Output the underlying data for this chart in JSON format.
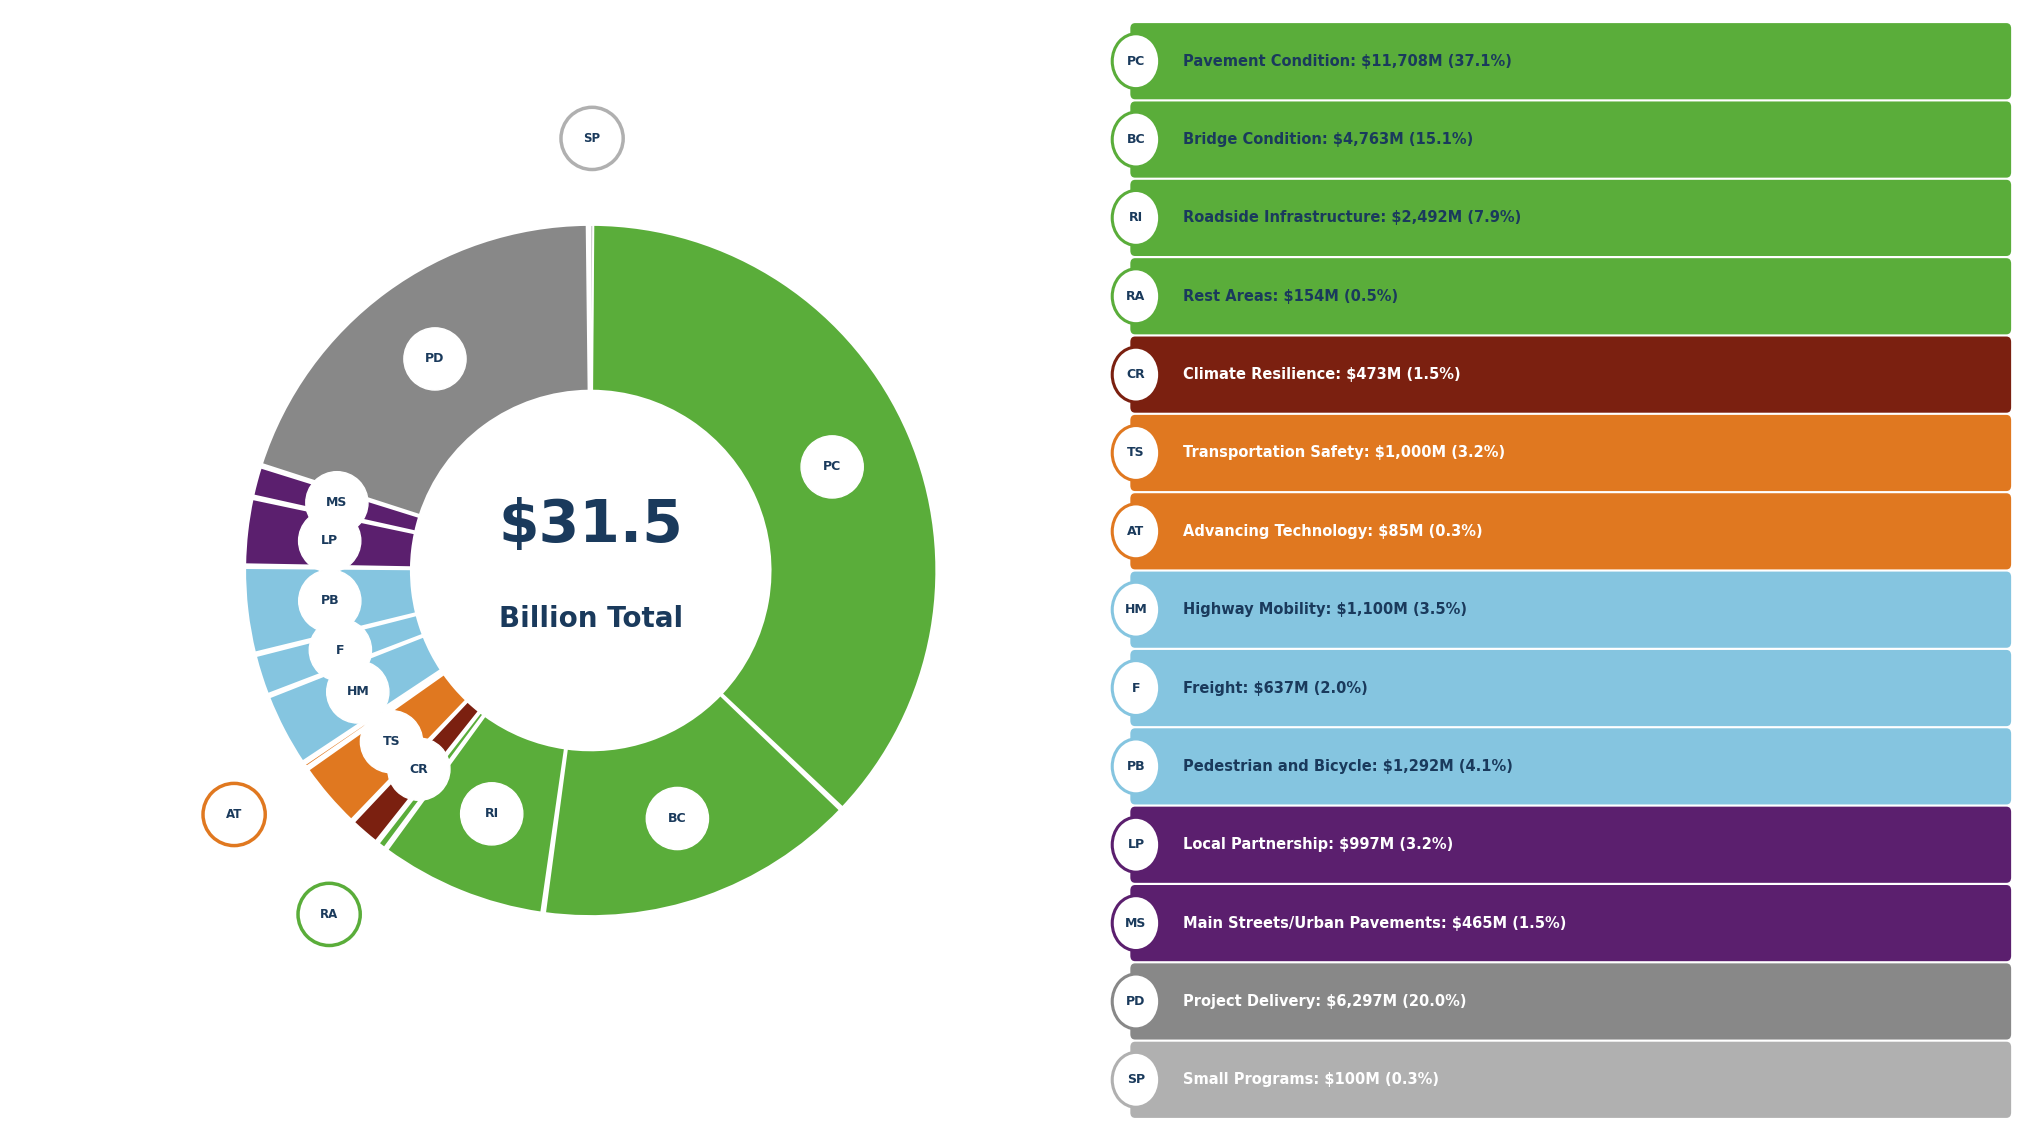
{
  "title_line1": "$31.5",
  "title_line2": "Billion Total",
  "segments": [
    {
      "label": "PC",
      "name": "Pavement Condition",
      "pct": 37.1,
      "color": "#5aad3a"
    },
    {
      "label": "BC",
      "name": "Bridge Condition",
      "pct": 15.1,
      "color": "#5aad3a"
    },
    {
      "label": "RI",
      "name": "Roadside Infrastructure",
      "pct": 7.9,
      "color": "#5aad3a"
    },
    {
      "label": "RA",
      "name": "Rest Areas",
      "pct": 0.5,
      "color": "#5aad3a"
    },
    {
      "label": "CR",
      "name": "Climate Resilience",
      "pct": 1.5,
      "color": "#7b2010"
    },
    {
      "label": "TS",
      "name": "Transportation Safety",
      "pct": 3.2,
      "color": "#e07820"
    },
    {
      "label": "AT",
      "name": "Advancing Technology",
      "pct": 0.3,
      "color": "#e07820"
    },
    {
      "label": "HM",
      "name": "Highway Mobility",
      "pct": 3.5,
      "color": "#85c5e0"
    },
    {
      "label": "F",
      "name": "Freight",
      "pct": 2.0,
      "color": "#85c5e0"
    },
    {
      "label": "PB",
      "name": "Pedestrian and Bicycle",
      "pct": 4.1,
      "color": "#85c5e0"
    },
    {
      "label": "LP",
      "name": "Local Partnership",
      "pct": 3.2,
      "color": "#5b1f6e"
    },
    {
      "label": "MS",
      "name": "Main Streets/Urban Pavements",
      "pct": 1.5,
      "color": "#5b1f6e"
    },
    {
      "label": "PD",
      "name": "Project Delivery",
      "pct": 20.0,
      "color": "#888888"
    },
    {
      "label": "SP",
      "name": "Small Programs",
      "pct": 0.3,
      "color": "#b0b0b0"
    }
  ],
  "legend_items": [
    {
      "label": "PC",
      "name": "Pavement Condition",
      "value": "$11,708M (37.1%)",
      "bg_color": "#5aad3a",
      "text_color": "#1a3a5c",
      "badge_border": "#5aad3a",
      "bold_name": true
    },
    {
      "label": "BC",
      "name": "Bridge Condition",
      "value": "$4,763M (15.1%)",
      "bg_color": "#5aad3a",
      "text_color": "#1a3a5c",
      "badge_border": "#5aad3a",
      "bold_name": true
    },
    {
      "label": "RI",
      "name": "Roadside Infrastructure",
      "value": "$2,492M (7.9%)",
      "bg_color": "#5aad3a",
      "text_color": "#1a3a5c",
      "badge_border": "#5aad3a",
      "bold_name": true
    },
    {
      "label": "RA",
      "name": "Rest Areas",
      "value": "$154M (0.5%)",
      "bg_color": "#5aad3a",
      "text_color": "#1a3a5c",
      "badge_border": "#5aad3a",
      "bold_name": true
    },
    {
      "label": "CR",
      "name": "Climate Resilience",
      "value": "$473M (1.5%)",
      "bg_color": "#7b2010",
      "text_color": "#ffffff",
      "badge_border": "#7b2010",
      "bold_name": true
    },
    {
      "label": "TS",
      "name": "Transportation Safety",
      "value": "$1,000M (3.2%)",
      "bg_color": "#e07820",
      "text_color": "#ffffff",
      "badge_border": "#e07820",
      "bold_name": true
    },
    {
      "label": "AT",
      "name": "Advancing Technology",
      "value": "$85M (0.3%)",
      "bg_color": "#e07820",
      "text_color": "#ffffff",
      "badge_border": "#e07820",
      "bold_name": true
    },
    {
      "label": "HM",
      "name": "Highway Mobility",
      "value": "$1,100M (3.5%)",
      "bg_color": "#85c5e0",
      "text_color": "#1a3a5c",
      "badge_border": "#85c5e0",
      "bold_name": true
    },
    {
      "label": "F",
      "name": "Freight",
      "value": "$637M (2.0%)",
      "bg_color": "#85c5e0",
      "text_color": "#1a3a5c",
      "badge_border": "#85c5e0",
      "bold_name": true
    },
    {
      "label": "PB",
      "name": "Pedestrian and Bicycle",
      "value": "$1,292M (4.1%)",
      "bg_color": "#85c5e0",
      "text_color": "#1a3a5c",
      "badge_border": "#85c5e0",
      "bold_name": true
    },
    {
      "label": "LP",
      "name": "Local Partnership",
      "value": "$997M (3.2%)",
      "bg_color": "#5b1f6e",
      "text_color": "#ffffff",
      "badge_border": "#5b1f6e",
      "bold_name": true
    },
    {
      "label": "MS",
      "name": "Main Streets/Urban Pavements",
      "value": "$465M (1.5%)",
      "bg_color": "#5b1f6e",
      "text_color": "#ffffff",
      "badge_border": "#5b1f6e",
      "bold_name": true
    },
    {
      "label": "PD",
      "name": "Project Delivery",
      "value": "$6,297M (20.0%)",
      "bg_color": "#888888",
      "text_color": "#ffffff",
      "badge_border": "#888888",
      "bold_name": false
    },
    {
      "label": "SP",
      "name": "Small Programs",
      "value": "$100M (0.3%)",
      "bg_color": "#b0b0b0",
      "text_color": "#ffffff",
      "badge_border": "#b0b0b0",
      "bold_name": false
    }
  ],
  "bg_color": "#ffffff",
  "center_text_color": "#1a3a5c",
  "outer_r": 1.0,
  "inner_r": 0.52
}
